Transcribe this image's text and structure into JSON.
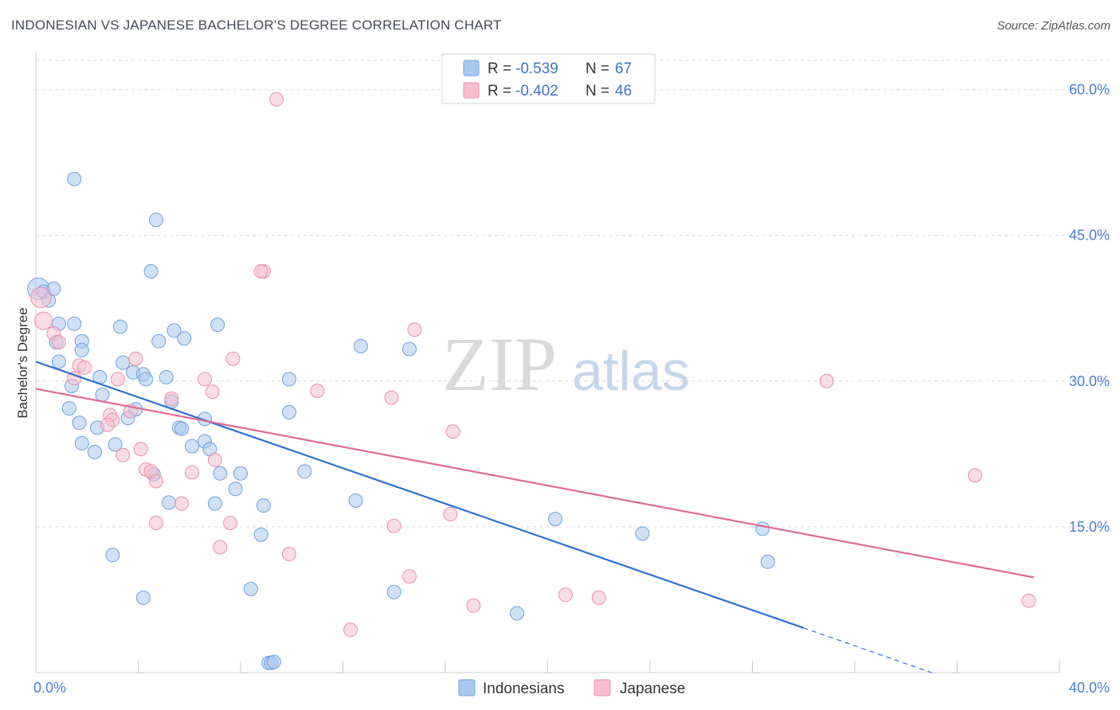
{
  "header": {
    "title": "INDONESIAN VS JAPANESE BACHELOR'S DEGREE CORRELATION CHART",
    "source": "Source: ZipAtlas.com"
  },
  "watermark": {
    "zip": "ZIP",
    "atlas": "atlas"
  },
  "colors": {
    "blue_fill": "#a9c8f0",
    "blue_stroke": "#6f9fdd",
    "blue_line": "#2e6fd0",
    "pink_fill": "#f6bfd0",
    "pink_stroke": "#e88fab",
    "pink_line": "#e06a95",
    "grid": "#dcdcdc",
    "tick_text": "#4a7fd0"
  },
  "legend_top": {
    "rows": [
      {
        "r_label": "R =",
        "r_value": "-0.539",
        "n_label": "N =",
        "n_value": "67"
      },
      {
        "r_label": "R =",
        "r_value": "-0.402",
        "n_label": "N =",
        "n_value": "46"
      }
    ]
  },
  "chart_data": {
    "type": "scatter",
    "title": "INDONESIAN VS JAPANESE BACHELOR'S DEGREE CORRELATION CHART",
    "xlabel": "",
    "ylabel": "Bachelor's Degree",
    "xlim": [
      0,
      40
    ],
    "ylim": [
      0,
      63
    ],
    "x_tick_labels": [
      "0.0%",
      "40.0%"
    ],
    "y_ticks": [
      15,
      30,
      45,
      60
    ],
    "y_tick_labels": [
      "15.0%",
      "30.0%",
      "45.0%",
      "60.0%"
    ],
    "grid": true,
    "legend_position": "bottom-center",
    "series": [
      {
        "name": "Indonesians",
        "r": -0.539,
        "n": 67,
        "trend": {
          "x0": 0,
          "y0": 32.0,
          "x1": 30.0,
          "y1": 4.6,
          "dash_to_x": 35.0,
          "dash_to_y": 0.0
        },
        "points": [
          [
            0.1,
            39.5,
            1.6
          ],
          [
            0.3,
            39.2,
            1
          ],
          [
            0.5,
            38.3,
            1
          ],
          [
            0.7,
            39.5,
            1
          ],
          [
            1.5,
            50.8,
            1
          ],
          [
            4.7,
            46.6,
            1
          ],
          [
            4.5,
            41.3,
            1
          ],
          [
            0.9,
            35.9,
            1
          ],
          [
            1.5,
            35.9,
            1
          ],
          [
            3.3,
            35.6,
            1
          ],
          [
            5.4,
            35.2,
            1
          ],
          [
            7.1,
            35.8,
            1
          ],
          [
            5.8,
            34.4,
            1
          ],
          [
            0.8,
            34.0,
            1
          ],
          [
            1.8,
            34.1,
            1
          ],
          [
            1.8,
            33.2,
            1
          ],
          [
            4.8,
            34.1,
            1
          ],
          [
            3.4,
            31.9,
            1
          ],
          [
            0.9,
            32.0,
            1
          ],
          [
            3.8,
            30.9,
            1
          ],
          [
            4.2,
            30.7,
            1
          ],
          [
            4.3,
            30.2,
            1
          ],
          [
            2.5,
            30.4,
            1
          ],
          [
            5.1,
            30.4,
            1
          ],
          [
            1.4,
            29.5,
            1
          ],
          [
            2.6,
            28.6,
            1
          ],
          [
            5.3,
            27.9,
            1
          ],
          [
            1.3,
            27.2,
            1
          ],
          [
            3.9,
            27.1,
            1
          ],
          [
            3.6,
            26.2,
            1
          ],
          [
            6.6,
            26.1,
            1
          ],
          [
            1.7,
            25.7,
            1
          ],
          [
            2.4,
            25.2,
            1
          ],
          [
            5.6,
            25.2,
            1
          ],
          [
            5.7,
            25.1,
            1
          ],
          [
            1.8,
            23.6,
            1
          ],
          [
            3.1,
            23.5,
            1
          ],
          [
            6.6,
            23.8,
            1
          ],
          [
            6.1,
            23.3,
            1
          ],
          [
            6.8,
            23.0,
            1
          ],
          [
            2.3,
            22.7,
            1
          ],
          [
            9.9,
            26.8,
            1
          ],
          [
            9.9,
            30.2,
            1
          ],
          [
            12.7,
            33.6,
            1
          ],
          [
            14.6,
            33.3,
            1
          ],
          [
            4.6,
            20.4,
            1
          ],
          [
            7.2,
            20.5,
            1
          ],
          [
            8.0,
            20.5,
            1
          ],
          [
            10.5,
            20.7,
            1
          ],
          [
            7.8,
            18.9,
            1
          ],
          [
            5.2,
            17.5,
            1
          ],
          [
            7.0,
            17.4,
            1
          ],
          [
            8.9,
            17.2,
            1
          ],
          [
            12.5,
            17.7,
            1
          ],
          [
            20.3,
            15.8,
            1
          ],
          [
            8.8,
            14.2,
            1
          ],
          [
            23.7,
            14.3,
            1
          ],
          [
            28.4,
            14.8,
            1
          ],
          [
            3.0,
            12.1,
            1
          ],
          [
            28.6,
            11.4,
            1
          ],
          [
            4.2,
            7.7,
            1
          ],
          [
            8.4,
            8.6,
            1
          ],
          [
            14.0,
            8.3,
            1
          ],
          [
            18.8,
            6.1,
            1
          ],
          [
            9.1,
            1.0,
            1
          ],
          [
            9.2,
            1.0,
            1
          ],
          [
            9.3,
            1.1,
            1
          ]
        ]
      },
      {
        "name": "Japanese",
        "r": -0.402,
        "n": 46,
        "trend": {
          "x0": 0,
          "y0": 29.2,
          "x1": 39.0,
          "y1": 9.8
        },
        "points": [
          [
            0.2,
            38.6,
            1.5
          ],
          [
            0.3,
            36.2,
            1.3
          ],
          [
            0.7,
            34.9,
            1
          ],
          [
            0.9,
            34.0,
            1
          ],
          [
            9.4,
            59.0,
            1
          ],
          [
            8.9,
            41.3,
            1
          ],
          [
            8.8,
            41.3,
            1
          ],
          [
            14.8,
            35.3,
            1
          ],
          [
            7.7,
            32.3,
            1
          ],
          [
            1.7,
            31.6,
            1
          ],
          [
            1.9,
            31.4,
            1
          ],
          [
            3.9,
            32.3,
            1
          ],
          [
            3.2,
            30.2,
            1
          ],
          [
            6.6,
            30.2,
            1
          ],
          [
            1.5,
            30.3,
            1
          ],
          [
            5.3,
            28.2,
            1
          ],
          [
            6.9,
            28.9,
            1
          ],
          [
            11.0,
            29.0,
            1
          ],
          [
            13.9,
            28.3,
            1
          ],
          [
            30.9,
            30.0,
            1
          ],
          [
            2.9,
            26.5,
            1
          ],
          [
            3.0,
            26.0,
            1
          ],
          [
            2.8,
            25.5,
            1
          ],
          [
            3.7,
            26.9,
            1
          ],
          [
            16.3,
            24.8,
            1
          ],
          [
            4.1,
            23.0,
            1
          ],
          [
            3.4,
            22.4,
            1
          ],
          [
            7.0,
            21.9,
            1
          ],
          [
            4.3,
            20.9,
            1
          ],
          [
            4.5,
            20.7,
            1
          ],
          [
            6.1,
            20.6,
            1
          ],
          [
            4.7,
            19.7,
            1
          ],
          [
            5.7,
            17.4,
            1
          ],
          [
            36.7,
            20.3,
            1
          ],
          [
            4.7,
            15.4,
            1
          ],
          [
            7.6,
            15.4,
            1
          ],
          [
            14.0,
            15.1,
            1
          ],
          [
            16.2,
            16.3,
            1
          ],
          [
            7.2,
            12.9,
            1
          ],
          [
            9.9,
            12.2,
            1
          ],
          [
            14.6,
            9.9,
            1
          ],
          [
            20.7,
            8.0,
            1
          ],
          [
            22.0,
            7.7,
            1
          ],
          [
            17.1,
            6.9,
            1
          ],
          [
            38.8,
            7.4,
            1
          ],
          [
            12.3,
            4.4,
            1
          ]
        ]
      }
    ]
  }
}
